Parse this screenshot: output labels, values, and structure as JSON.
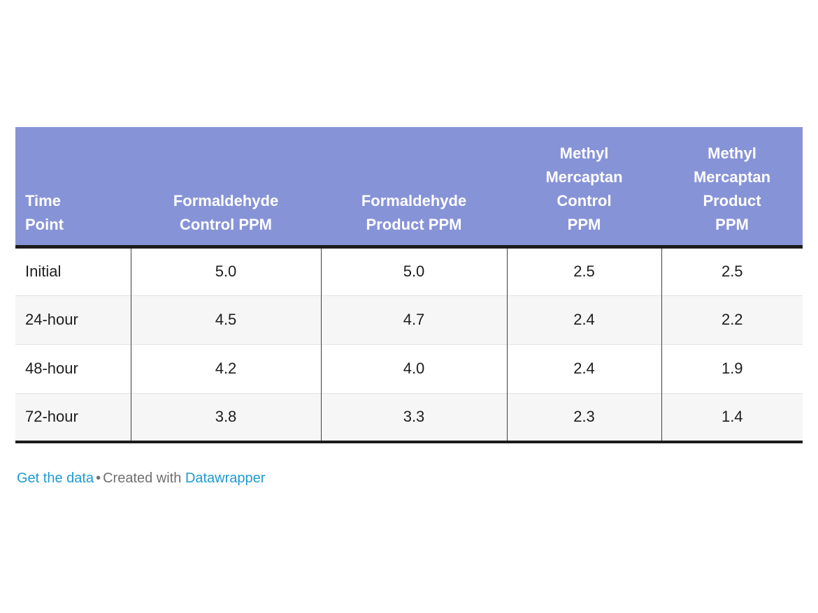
{
  "table": {
    "headers": [
      {
        "label": "Time\nPoint"
      },
      {
        "label": "Formaldehyde\nControl PPM"
      },
      {
        "label": "Formaldehyde\nProduct PPM"
      },
      {
        "label": "Methyl\nMercaptan\nControl\nPPM"
      },
      {
        "label": "Methyl\nMercaptan\nProduct\nPPM"
      }
    ],
    "rows": [
      {
        "label": "Initial",
        "values": [
          "5.0",
          "5.0",
          "2.5",
          "2.5"
        ]
      },
      {
        "label": "24-hour",
        "values": [
          "4.5",
          "4.7",
          "2.4",
          "2.2"
        ]
      },
      {
        "label": "48-hour",
        "values": [
          "4.2",
          "4.0",
          "2.4",
          "1.9"
        ]
      },
      {
        "label": "72-hour",
        "values": [
          "3.8",
          "3.3",
          "2.3",
          "1.4"
        ]
      }
    ]
  },
  "footer": {
    "get_data_label": "Get the data",
    "separator": "•",
    "created_with": "Created with",
    "brand": "Datawrapper"
  },
  "colors": {
    "header_bg": "#8793d7",
    "header_text": "#ffffff",
    "border_dark": "#1c1c1c",
    "col_divider": "#3f3f3f",
    "row_divider": "#e4e4e4",
    "stripe": "#f6f6f6",
    "body_text": "#1d1d1d",
    "link": "#1e9ad2",
    "muted": "#6f6f6f"
  },
  "chart_data": {
    "type": "table",
    "columns": [
      "Time Point",
      "Formaldehyde Control PPM",
      "Formaldehyde Product PPM",
      "Methyl Mercaptan Control PPM",
      "Methyl Mercaptan Product PPM"
    ],
    "rows": [
      [
        "Initial",
        5.0,
        5.0,
        2.5,
        2.5
      ],
      [
        "24-hour",
        4.5,
        4.7,
        2.4,
        2.2
      ],
      [
        "48-hour",
        4.2,
        4.0,
        2.4,
        1.9
      ],
      [
        "72-hour",
        3.8,
        3.3,
        2.3,
        1.4
      ]
    ],
    "attribution": "Get the data • Created with Datawrapper"
  }
}
